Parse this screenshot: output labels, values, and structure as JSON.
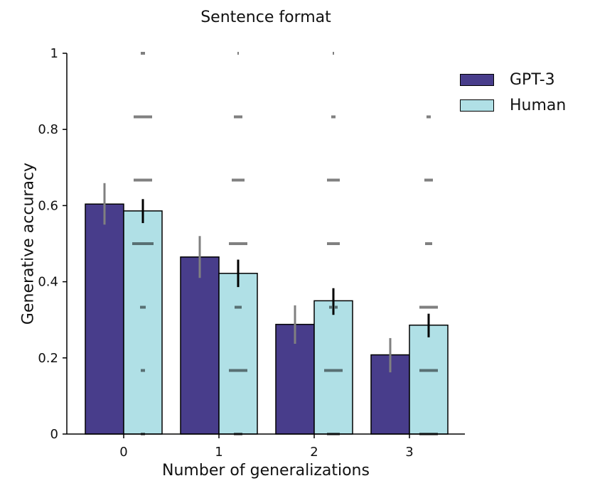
{
  "chart_data": {
    "type": "bar",
    "title": "Sentence format",
    "xlabel": "Number of generalizations",
    "ylabel": "Generative accuracy",
    "categories": [
      "0",
      "1",
      "2",
      "3"
    ],
    "ylim": [
      0,
      1
    ],
    "yticks": [
      0,
      0.2,
      0.4,
      0.6,
      0.8,
      1
    ],
    "ytick_labels": [
      "0",
      "0.2",
      "0.4",
      "0.6",
      "0.8",
      "1"
    ],
    "legend_position": "top-right",
    "series": [
      {
        "name": "GPT-3",
        "color": "#483d8b",
        "values": [
          0.604,
          0.465,
          0.288,
          0.208
        ],
        "err_low": [
          0.55,
          0.41,
          0.237,
          0.162
        ],
        "err_high": [
          0.659,
          0.52,
          0.338,
          0.252
        ],
        "err_color": "#808080"
      },
      {
        "name": "Human",
        "color": "#b0e0e6",
        "values": [
          0.586,
          0.422,
          0.35,
          0.286
        ],
        "err_low": [
          0.554,
          0.386,
          0.313,
          0.254
        ],
        "err_high": [
          0.617,
          0.458,
          0.383,
          0.316
        ],
        "err_color": "#000000"
      }
    ],
    "human_points": [
      [
        {
          "y": 1,
          "n": 3
        },
        {
          "y": 0.833,
          "n": 13
        },
        {
          "y": 0.667,
          "n": 13
        },
        {
          "y": 0.5,
          "n": 15
        },
        {
          "y": 0.333,
          "n": 4
        },
        {
          "y": 0.167,
          "n": 3
        },
        {
          "y": 0,
          "n": 3
        }
      ],
      [
        {
          "y": 1,
          "n": 1
        },
        {
          "y": 0.833,
          "n": 6
        },
        {
          "y": 0.667,
          "n": 9
        },
        {
          "y": 0.5,
          "n": 13
        },
        {
          "y": 0.333,
          "n": 5
        },
        {
          "y": 0.167,
          "n": 13
        },
        {
          "y": 0,
          "n": 6
        }
      ],
      [
        {
          "y": 1,
          "n": 1
        },
        {
          "y": 0.833,
          "n": 3
        },
        {
          "y": 0.667,
          "n": 9
        },
        {
          "y": 0.5,
          "n": 9
        },
        {
          "y": 0.333,
          "n": 6
        },
        {
          "y": 0.167,
          "n": 13
        },
        {
          "y": 0,
          "n": 9
        }
      ],
      [
        {
          "y": 0.833,
          "n": 3
        },
        {
          "y": 0.667,
          "n": 6
        },
        {
          "y": 0.5,
          "n": 5
        },
        {
          "y": 0.333,
          "n": 13
        },
        {
          "y": 0.167,
          "n": 13
        },
        {
          "y": 0,
          "n": 13
        }
      ]
    ]
  }
}
